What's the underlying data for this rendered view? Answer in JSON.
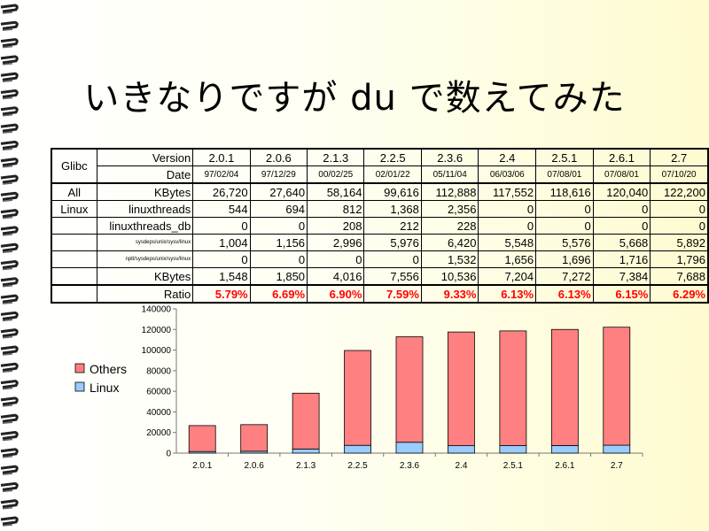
{
  "slide": {
    "title": "いきなりですが du で数えてみた"
  },
  "table": {
    "header_left": "Glibc",
    "version_label": "Version",
    "date_label": "Date",
    "group_label_1": "All",
    "group_label_2": "Linux",
    "versions": [
      "2.0.1",
      "2.0.6",
      "2.1.3",
      "2.2.5",
      "2.3.6",
      "2.4",
      "2.5.1",
      "2.6.1",
      "2.7"
    ],
    "dates": [
      "97/02/04",
      "97/12/29",
      "00/02/25",
      "02/01/22",
      "05/11/04",
      "06/03/06",
      "07/08/01",
      "07/08/01",
      "07/10/20"
    ],
    "rows": [
      {
        "label": "KBytes",
        "values": [
          "26,720",
          "27,640",
          "58,164",
          "99,616",
          "112,888",
          "117,552",
          "118,616",
          "120,040",
          "122,200"
        ]
      },
      {
        "label": "linuxthreads",
        "values": [
          "544",
          "694",
          "812",
          "1,368",
          "2,356",
          "0",
          "0",
          "0",
          "0"
        ]
      },
      {
        "label": "linuxthreads_db",
        "values": [
          "0",
          "0",
          "208",
          "212",
          "228",
          "0",
          "0",
          "0",
          "0"
        ]
      },
      {
        "label": "sysdeps/unix/sysv/linux",
        "values": [
          "1,004",
          "1,156",
          "2,996",
          "5,976",
          "6,420",
          "5,548",
          "5,576",
          "5,668",
          "5,892"
        ]
      },
      {
        "label": "nptl/sysdeps/unix/sysv/linux",
        "values": [
          "0",
          "0",
          "0",
          "0",
          "1,532",
          "1,656",
          "1,696",
          "1,716",
          "1,796"
        ]
      },
      {
        "label": "KBytes",
        "values": [
          "1,548",
          "1,850",
          "4,016",
          "7,556",
          "10,536",
          "7,204",
          "7,272",
          "7,384",
          "7,688"
        ]
      }
    ],
    "ratio_label": "Ratio",
    "ratios": [
      "5.79%",
      "6.69%",
      "6.90%",
      "7.59%",
      "9.33%",
      "6.13%",
      "6.13%",
      "6.15%",
      "6.29%"
    ]
  },
  "chart_data": {
    "type": "bar",
    "stacked": true,
    "categories": [
      "2.0.1",
      "2.0.6",
      "2.1.3",
      "2.2.5",
      "2.3.6",
      "2.4",
      "2.5.1",
      "2.6.1",
      "2.7"
    ],
    "series": [
      {
        "name": "Linux",
        "color": "#99ccff",
        "values": [
          1548,
          1850,
          4016,
          7556,
          10536,
          7204,
          7272,
          7384,
          7688
        ]
      },
      {
        "name": "Others",
        "color": "#ff8080",
        "values": [
          25172,
          25790,
          54148,
          92060,
          102352,
          110348,
          111344,
          112656,
          114512
        ]
      }
    ],
    "ylim": [
      0,
      140000
    ],
    "yticks": [
      "0",
      "20000",
      "40000",
      "60000",
      "80000",
      "100000",
      "120000",
      "140000"
    ],
    "legend_position": "left",
    "grid": false
  }
}
